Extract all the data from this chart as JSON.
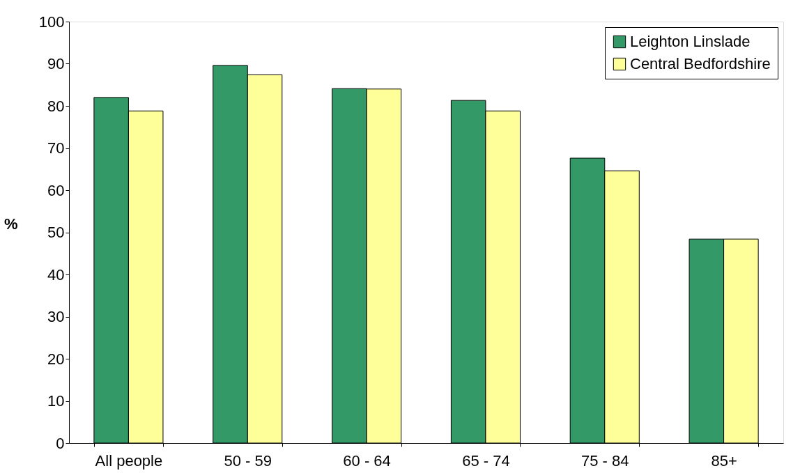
{
  "chart_data": {
    "type": "bar",
    "ylabel": "%",
    "categories": [
      "All people",
      "50 - 59",
      "60 - 64",
      "65 - 74",
      "75 - 84",
      "85+"
    ],
    "series": [
      {
        "name": "Leighton Linslade",
        "color": "#339966",
        "values": [
          82.0,
          89.6,
          84.1,
          81.3,
          67.6,
          48.4
        ]
      },
      {
        "name": "Central Bedfordshire",
        "color": "#ffff99",
        "values": [
          78.8,
          87.4,
          84.0,
          78.8,
          64.6,
          48.4
        ]
      }
    ],
    "ylim": [
      0,
      100
    ],
    "yticks": [
      0,
      10,
      20,
      30,
      40,
      50,
      60,
      70,
      80,
      90,
      100
    ],
    "grid": false,
    "legend": "top right"
  }
}
